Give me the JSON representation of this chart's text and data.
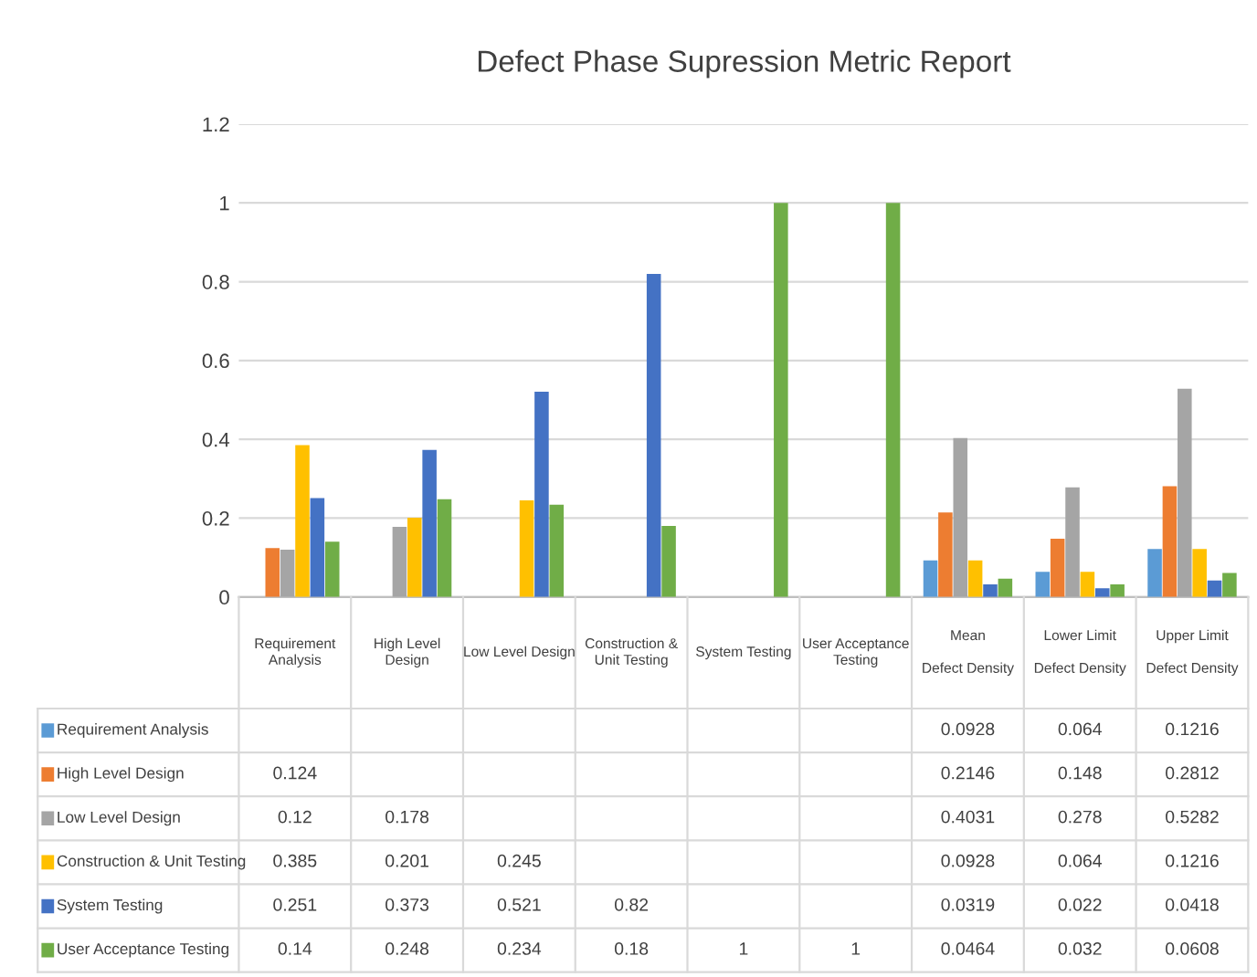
{
  "chart_data": {
    "type": "bar",
    "title": "Defect Phase Supression Metric Report",
    "categories": [
      "Requirement\nAnalysis",
      "High Level\nDesign",
      "Low Level Design",
      "Construction &\nUnit Testing",
      "System Testing",
      "User Acceptance\nTesting",
      "Mean\n\nDefect Density",
      "Lower Limit\n\nDefect Density",
      "Upper Limit\n\nDefect Density"
    ],
    "series": [
      {
        "name": "Requirement Analysis",
        "color": "#5b9bd5",
        "values": [
          null,
          null,
          null,
          null,
          null,
          null,
          0.0928,
          0.064,
          0.1216
        ]
      },
      {
        "name": "High Level Design",
        "color": "#ed7d31",
        "values": [
          0.124,
          null,
          null,
          null,
          null,
          null,
          0.2146,
          0.148,
          0.2812
        ]
      },
      {
        "name": "Low Level Design",
        "color": "#a5a5a5",
        "values": [
          0.12,
          0.178,
          null,
          null,
          null,
          null,
          0.4031,
          0.278,
          0.5282
        ]
      },
      {
        "name": "Construction & Unit Testing",
        "color": "#ffc000",
        "values": [
          0.385,
          0.201,
          0.245,
          null,
          null,
          null,
          0.0928,
          0.064,
          0.1216
        ]
      },
      {
        "name": "System Testing",
        "color": "#4472c4",
        "values": [
          0.251,
          0.373,
          0.521,
          0.82,
          null,
          null,
          0.0319,
          0.022,
          0.0418
        ]
      },
      {
        "name": "User Acceptance Testing",
        "color": "#70ad47",
        "values": [
          0.14,
          0.248,
          0.234,
          0.18,
          1,
          1,
          0.0464,
          0.032,
          0.0608
        ]
      }
    ],
    "ylim": [
      0,
      1.2
    ],
    "yticks": [
      0,
      0.2,
      0.4,
      0.6,
      0.8,
      1,
      1.2
    ],
    "grid": "y",
    "legend": "bottom",
    "data_labels": true
  }
}
